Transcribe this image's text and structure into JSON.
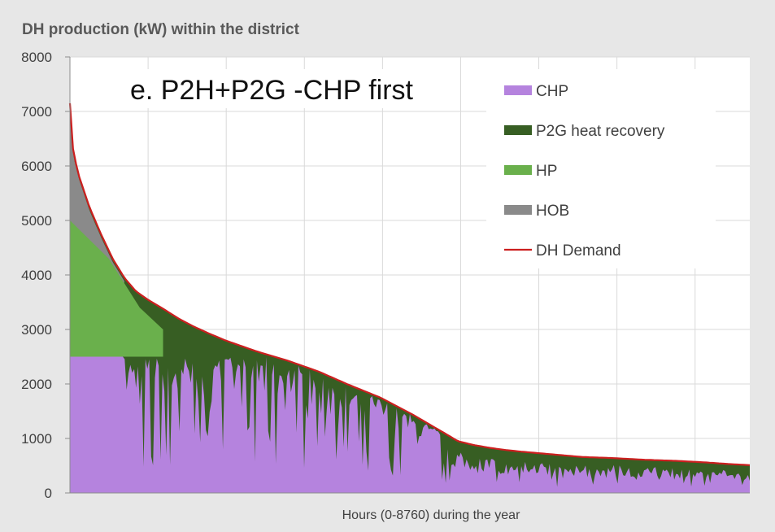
{
  "chart_data": {
    "type": "area",
    "title": "DH production (kW) within the district",
    "subtitle": "e. P2H+P2G -CHP first",
    "xlabel": "Hours (0-8760) during the year",
    "ylabel": "",
    "xlim": [
      0,
      8760
    ],
    "ylim": [
      0,
      8000
    ],
    "y_ticks": [
      "0",
      "1000",
      "2000",
      "3000",
      "4000",
      "5000",
      "6000",
      "7000",
      "8000"
    ],
    "grid": true,
    "legend_position": "top-right",
    "series": [
      {
        "name": "CHP",
        "color": "#b583de",
        "kind": "stacked-area"
      },
      {
        "name": "P2G heat recovery",
        "color": "#375e23",
        "kind": "stacked-area"
      },
      {
        "name": "HP",
        "color": "#6ab04c",
        "kind": "stacked-area"
      },
      {
        "name": "HOB",
        "color": "#8a8a8a",
        "kind": "stacked-area"
      },
      {
        "name": "DH Demand",
        "color": "#cc1f1f",
        "kind": "line"
      }
    ],
    "demand_curve": {
      "x": [
        0,
        10,
        50,
        120,
        250,
        400,
        550,
        700,
        850,
        1000,
        1200,
        1400,
        1600,
        1800,
        2000,
        2400,
        2800,
        3200,
        3600,
        4000,
        4400,
        4800,
        5000,
        5200,
        5400,
        5600,
        5800,
        6200,
        6600,
        7000,
        7400,
        7800,
        8200,
        8500,
        8760
      ],
      "y": [
        7150,
        6650,
        6200,
        5800,
        5250,
        4750,
        4300,
        3950,
        3700,
        3550,
        3380,
        3200,
        3050,
        2920,
        2800,
        2600,
        2430,
        2230,
        1980,
        1750,
        1450,
        1120,
        950,
        880,
        830,
        790,
        760,
        710,
        660,
        640,
        610,
        590,
        560,
        530,
        510
      ]
    },
    "chp_level": 2500,
    "hp_upper": {
      "x": [
        0,
        500,
        900,
        1200
      ],
      "y": [
        5000,
        4300,
        3400,
        3000
      ]
    }
  }
}
